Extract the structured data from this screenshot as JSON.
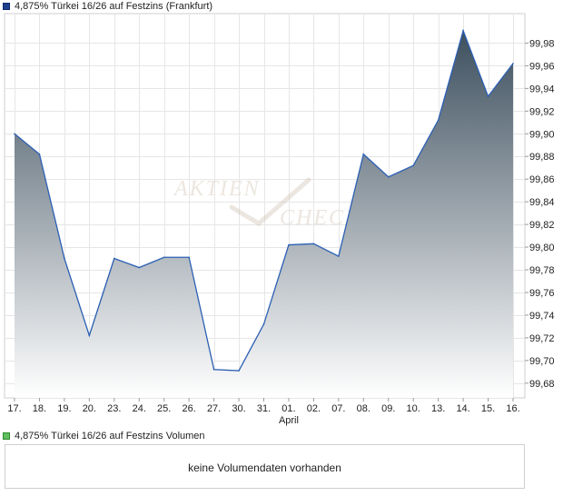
{
  "legend": {
    "price_label": "4,875% Türkei 16/26 auf Festzins (Frankfurt)",
    "volume_label": "4,875% Türkei 16/26 auf Festzins Volumen"
  },
  "watermark": {
    "line1": "AKTIEN",
    "line2": "CHECK"
  },
  "volume": {
    "empty_text": "keine Volumendaten vorhanden"
  },
  "colors": {
    "line": "#2b5fb4",
    "fill_top": "#3d4f5e",
    "fill_bottom": "#ffffff",
    "legend_price": "#1f3f8f",
    "legend_volume": "#5fbf5f"
  },
  "chart_data": {
    "type": "area",
    "title": "4,875% Türkei 16/26 auf Festzins (Frankfurt)",
    "x": [
      "17.",
      "18.",
      "19.",
      "20.",
      "23.",
      "24.",
      "25.",
      "26.",
      "27.",
      "30.",
      "31.",
      "01.",
      "02.",
      "07.",
      "08.",
      "09.",
      "10.",
      "13.",
      "14.",
      "15.",
      "16."
    ],
    "x_sublabels": [
      {
        "index": 11,
        "text": "April"
      }
    ],
    "series": [
      {
        "values": [
          99.9,
          99.882,
          99.79,
          99.722,
          99.79,
          99.782,
          99.791,
          99.791,
          99.692,
          99.691,
          99.732,
          99.802,
          99.803,
          99.792,
          99.882,
          99.862,
          99.872,
          99.912,
          99.991,
          99.933,
          99.962
        ]
      }
    ],
    "y_ticks": [
      99.68,
      99.7,
      99.72,
      99.74,
      99.76,
      99.78,
      99.8,
      99.82,
      99.84,
      99.86,
      99.88,
      99.9,
      99.92,
      99.94,
      99.96,
      99.98
    ],
    "y_tick_labels": [
      "99,68",
      "99,70",
      "99,72",
      "99,74",
      "99,76",
      "99,78",
      "99,80",
      "99,82",
      "99,84",
      "99,86",
      "99,88",
      "99,90",
      "99,92",
      "99,94",
      "99,96",
      "99,98"
    ],
    "ylim": [
      99.667,
      100.006
    ],
    "grid": true,
    "y_axis_position": "right",
    "legend_position": "top-left"
  }
}
